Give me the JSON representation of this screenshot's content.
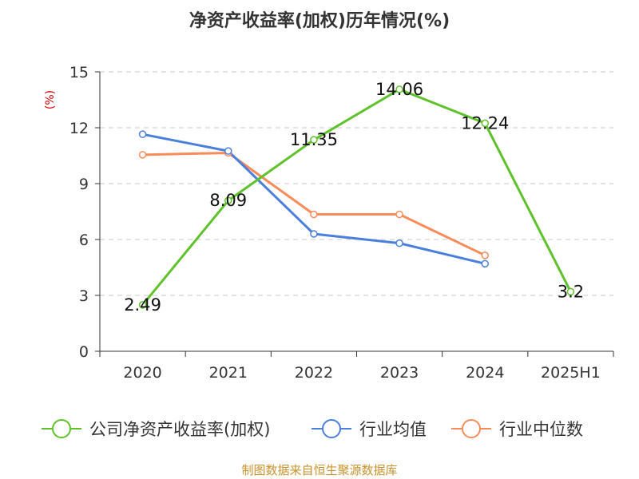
{
  "chart_data": {
    "type": "line",
    "title": "净资产收益率(加权)历年情况(%)",
    "ylabel": "(%)",
    "xlabel": "",
    "categories": [
      "2020",
      "2021",
      "2022",
      "2023",
      "2024",
      "2025H1"
    ],
    "ylim": [
      0,
      15
    ],
    "yticks": [
      0,
      3,
      6,
      9,
      12,
      15
    ],
    "grid": true,
    "legend_position": "bottom",
    "series": [
      {
        "name": "公司净资产收益率(加权)",
        "color": "#5ec22a",
        "values": [
          2.49,
          8.09,
          11.35,
          14.06,
          12.24,
          3.2
        ],
        "labels": [
          "2.49",
          "8.09",
          "11.35",
          "14.06",
          "12.24",
          "3.2"
        ]
      },
      {
        "name": "行业均值",
        "color": "#4a7fdb",
        "values": [
          11.65,
          10.75,
          6.3,
          5.8,
          4.7,
          null
        ]
      },
      {
        "name": "行业中位数",
        "color": "#f78b5a",
        "values": [
          10.55,
          10.65,
          7.35,
          7.35,
          5.15,
          null
        ]
      }
    ]
  },
  "source": {
    "text": "制图数据来自恒生聚源数据库",
    "color": "#c8922c"
  },
  "ylabel_color": "#cc0000"
}
